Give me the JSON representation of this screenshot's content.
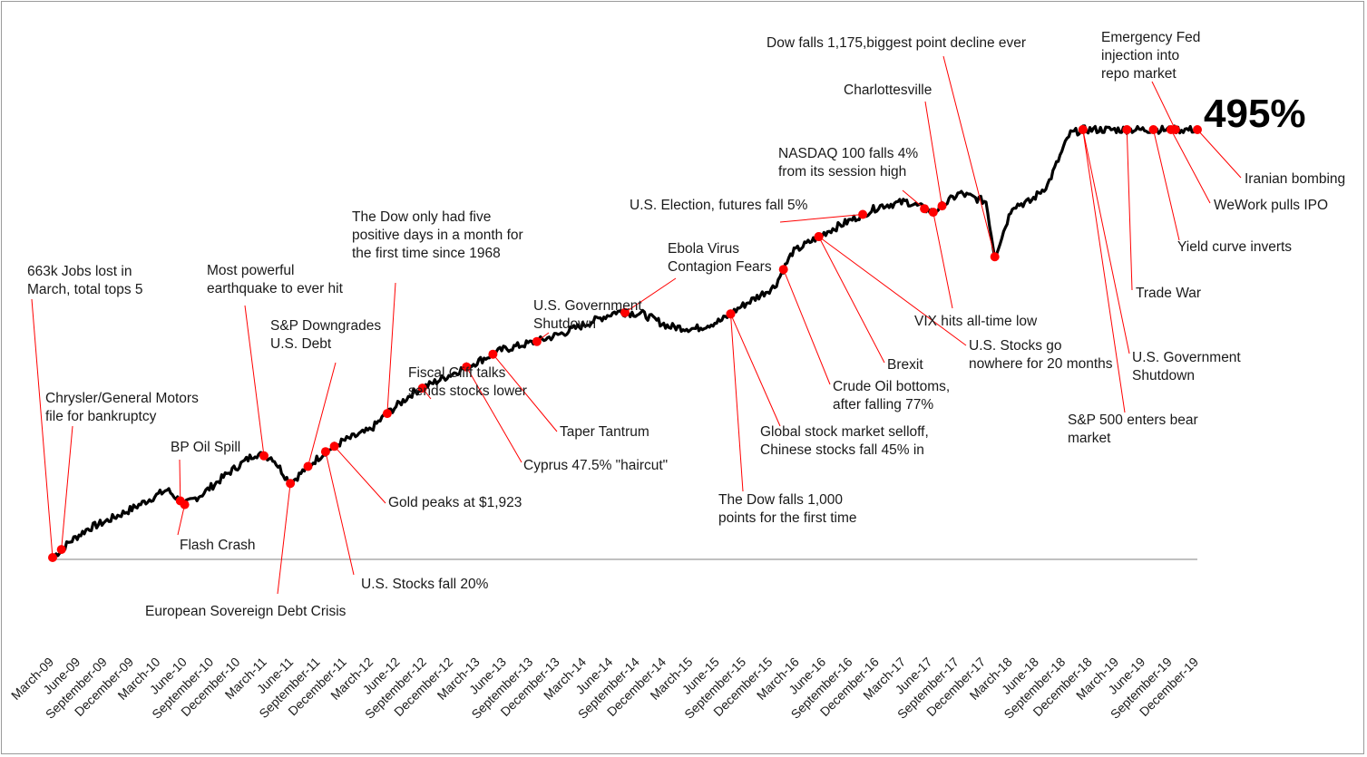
{
  "chart_data": {
    "type": "line",
    "x_tick_labels": [
      "March-09",
      "June-09",
      "September-09",
      "December-09",
      "March-10",
      "June-10",
      "September-10",
      "December-10",
      "March-11",
      "June-11",
      "September-11",
      "December-11",
      "March-12",
      "June-12",
      "September-12",
      "December-12",
      "March-13",
      "June-13",
      "September-13",
      "December-13",
      "March-14",
      "June-14",
      "September-14",
      "December-14",
      "March-15",
      "June-15",
      "September-15",
      "December-15",
      "March-16",
      "June-16",
      "September-16",
      "December-16",
      "March-17",
      "June-17",
      "September-17",
      "December-17",
      "March-18",
      "June-18",
      "September-18",
      "December-18",
      "March-19",
      "June-19",
      "September-19",
      "December-19"
    ],
    "callout": "495%",
    "series": [
      {
        "values": [
          0,
          38,
          68,
          85,
          115,
          160,
          125,
          150,
          200,
          245,
          235,
          175,
          215,
          250,
          275,
          300,
          340,
          390,
          420,
          450,
          490,
          510,
          530,
          555,
          580,
          575,
          545,
          540,
          560,
          590,
          615,
          640,
          720,
          770,
          800,
          830,
          840,
          815,
          860,
          840,
          710,
          830,
          840,
          880,
          1000,
          1010
        ]
      }
    ],
    "events": [
      {
        "label": "663k Jobs lost in\nMarch, total tops 5",
        "month": 0
      },
      {
        "label": "Chrysler/General Motors\nfile for bankruptcy",
        "month": 1
      },
      {
        "label": "BP Oil Spill",
        "month": 14.5
      },
      {
        "label": "Flash Crash",
        "month": 15
      },
      {
        "label": "Most powerful\nearthquake to ever hit",
        "month": 24
      },
      {
        "label": "European Sovereign Debt Crisis",
        "month": 27
      },
      {
        "label": "S&P Downgrades\nU.S. Debt",
        "month": 29
      },
      {
        "label": "U.S. Stocks fall 20%",
        "month": 31
      },
      {
        "label": "Gold peaks at $1,923",
        "month": 32
      },
      {
        "label": "The Dow only had five\npositive days in a month for\nthe first time since 1968",
        "month": 38
      },
      {
        "label": "Fiscal Cliff talks\nsends stocks lower",
        "month": 42
      },
      {
        "label": "Cyprus 47.5% \"haircut\"",
        "month": 47
      },
      {
        "label": "Taper Tantrum",
        "month": 50
      },
      {
        "label": "U.S. Government\nShutdown",
        "month": 55
      },
      {
        "label": "Ebola Virus\nContagion Fears",
        "month": 65
      },
      {
        "label": "The Dow falls 1,000\npoints for the first time",
        "month": 77
      },
      {
        "label": "Global stock market selloff,\nChinese stocks fall 45% in",
        "month": 77
      },
      {
        "label": "Crude Oil bottoms,\nafter falling 77%",
        "month": 83
      },
      {
        "label": "Brexit",
        "month": 87
      },
      {
        "label": "U.S. Stocks go\nnowhere for 20 months",
        "month": 87
      },
      {
        "label": "U.S. Election, futures fall 5%",
        "month": 92
      },
      {
        "label": "NASDAQ 100 falls 4%\nfrom its  session high",
        "month": 99
      },
      {
        "label": "VIX hits all-time low",
        "month": 100
      },
      {
        "label": "Charlottesville",
        "month": 101
      },
      {
        "label": "Dow falls 1,175,biggest point decline ever",
        "month": 107
      },
      {
        "label": "S&P 500 enters bear\nmarket",
        "month": 117
      },
      {
        "label": "U.S. Government\nShutdown",
        "month": 117
      },
      {
        "label": "Trade War",
        "month": 122
      },
      {
        "label": "Yield curve inverts",
        "month": 125
      },
      {
        "label": "WeWork pulls IPO",
        "month": 127
      },
      {
        "label": "Emergency Fed\ninjection into\nrepo market",
        "month": 127.5
      },
      {
        "label": "Iranian bombing",
        "month": 130
      }
    ],
    "grid": false,
    "legend": "none"
  },
  "colors": {
    "line": "#000000",
    "marker": "#ff0000",
    "leader": "#ff0000",
    "axis": "#808080"
  }
}
